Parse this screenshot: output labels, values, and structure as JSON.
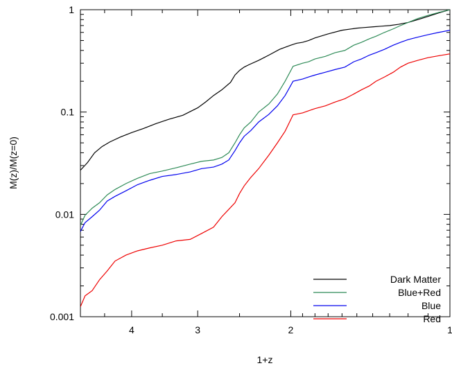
{
  "chart_data": {
    "type": "line",
    "xlabel": "1+z",
    "ylabel": "M(z)/M(z=0)",
    "x_scale": "log",
    "x_reversed": true,
    "y_scale": "log",
    "xlim": [
      5.0,
      1.0
    ],
    "ylim": [
      0.001,
      1
    ],
    "x_ticks": [
      {
        "value": 4,
        "label": "4"
      },
      {
        "value": 3,
        "label": "3"
      },
      {
        "value": 2,
        "label": "2"
      },
      {
        "value": 1,
        "label": "1"
      }
    ],
    "y_ticks": [
      {
        "value": 1,
        "label": "1"
      },
      {
        "value": 0.1,
        "label": "0.1"
      },
      {
        "value": 0.01,
        "label": "0.01"
      },
      {
        "value": 0.001,
        "label": "0.001"
      }
    ],
    "grid": false,
    "legend_position": "bottom-right",
    "series": [
      {
        "name": "Dark Matter",
        "color": "#000000",
        "x": [
          5.0,
          4.85,
          4.7,
          4.55,
          4.4,
          4.2,
          4.0,
          3.8,
          3.6,
          3.4,
          3.2,
          3.0,
          2.9,
          2.8,
          2.7,
          2.6,
          2.55,
          2.5,
          2.45,
          2.4,
          2.3,
          2.2,
          2.1,
          2.0,
          1.95,
          1.9,
          1.85,
          1.8,
          1.7,
          1.6,
          1.5,
          1.45,
          1.4,
          1.35,
          1.3,
          1.25,
          1.2,
          1.15,
          1.1,
          1.05,
          1.0
        ],
        "y": [
          0.027,
          0.032,
          0.04,
          0.046,
          0.051,
          0.057,
          0.063,
          0.069,
          0.077,
          0.085,
          0.093,
          0.11,
          0.125,
          0.145,
          0.165,
          0.195,
          0.23,
          0.255,
          0.275,
          0.29,
          0.32,
          0.36,
          0.41,
          0.45,
          0.47,
          0.48,
          0.5,
          0.53,
          0.58,
          0.63,
          0.66,
          0.67,
          0.68,
          0.69,
          0.7,
          0.72,
          0.75,
          0.8,
          0.86,
          0.93,
          1.0
        ]
      },
      {
        "name": "Blue+Red",
        "color": "#2e8b57",
        "x": [
          5.0,
          4.9,
          4.75,
          4.6,
          4.45,
          4.3,
          4.1,
          3.9,
          3.7,
          3.5,
          3.3,
          3.1,
          2.95,
          2.8,
          2.7,
          2.62,
          2.55,
          2.5,
          2.45,
          2.38,
          2.3,
          2.2,
          2.12,
          2.05,
          1.98,
          1.9,
          1.85,
          1.8,
          1.72,
          1.65,
          1.58,
          1.52,
          1.47,
          1.42,
          1.38,
          1.33,
          1.28,
          1.24,
          1.2,
          1.15,
          1.1,
          1.05,
          1.0
        ],
        "y": [
          0.0078,
          0.0098,
          0.0115,
          0.013,
          0.0155,
          0.0175,
          0.02,
          0.0225,
          0.025,
          0.0265,
          0.0285,
          0.031,
          0.033,
          0.034,
          0.036,
          0.04,
          0.05,
          0.06,
          0.07,
          0.08,
          0.1,
          0.12,
          0.15,
          0.2,
          0.28,
          0.3,
          0.31,
          0.33,
          0.35,
          0.38,
          0.4,
          0.45,
          0.48,
          0.52,
          0.55,
          0.6,
          0.65,
          0.7,
          0.75,
          0.82,
          0.88,
          0.94,
          1.0
        ]
      },
      {
        "name": "Blue",
        "color": "#0000ee",
        "x": [
          5.0,
          4.9,
          4.75,
          4.6,
          4.45,
          4.3,
          4.1,
          3.9,
          3.7,
          3.5,
          3.3,
          3.1,
          2.95,
          2.8,
          2.7,
          2.62,
          2.55,
          2.5,
          2.45,
          2.38,
          2.3,
          2.2,
          2.12,
          2.05,
          1.98,
          1.9,
          1.85,
          1.8,
          1.72,
          1.65,
          1.58,
          1.52,
          1.47,
          1.42,
          1.38,
          1.33,
          1.28,
          1.24,
          1.2,
          1.15,
          1.1,
          1.05,
          1.0
        ],
        "y": [
          0.0068,
          0.0083,
          0.0095,
          0.011,
          0.0135,
          0.015,
          0.017,
          0.0195,
          0.0215,
          0.0235,
          0.0245,
          0.026,
          0.028,
          0.029,
          0.031,
          0.034,
          0.042,
          0.05,
          0.058,
          0.066,
          0.08,
          0.095,
          0.115,
          0.145,
          0.2,
          0.21,
          0.22,
          0.23,
          0.245,
          0.26,
          0.275,
          0.31,
          0.33,
          0.36,
          0.38,
          0.41,
          0.45,
          0.48,
          0.51,
          0.54,
          0.57,
          0.6,
          0.63
        ]
      },
      {
        "name": "Red",
        "color": "#ee0000",
        "x": [
          5.0,
          4.9,
          4.75,
          4.6,
          4.45,
          4.3,
          4.1,
          3.9,
          3.7,
          3.5,
          3.3,
          3.1,
          2.95,
          2.8,
          2.7,
          2.62,
          2.55,
          2.5,
          2.45,
          2.38,
          2.3,
          2.2,
          2.12,
          2.05,
          1.98,
          1.9,
          1.85,
          1.8,
          1.72,
          1.65,
          1.58,
          1.52,
          1.47,
          1.42,
          1.38,
          1.33,
          1.28,
          1.24,
          1.2,
          1.15,
          1.1,
          1.05,
          1.0
        ],
        "y": [
          0.00125,
          0.0016,
          0.0018,
          0.0023,
          0.0028,
          0.0035,
          0.004,
          0.0044,
          0.0047,
          0.005,
          0.0055,
          0.0057,
          0.0065,
          0.0075,
          0.0095,
          0.0112,
          0.013,
          0.016,
          0.019,
          0.023,
          0.028,
          0.038,
          0.05,
          0.065,
          0.094,
          0.098,
          0.103,
          0.108,
          0.115,
          0.125,
          0.135,
          0.15,
          0.165,
          0.18,
          0.2,
          0.22,
          0.245,
          0.275,
          0.3,
          0.32,
          0.34,
          0.355,
          0.37
        ]
      }
    ]
  }
}
